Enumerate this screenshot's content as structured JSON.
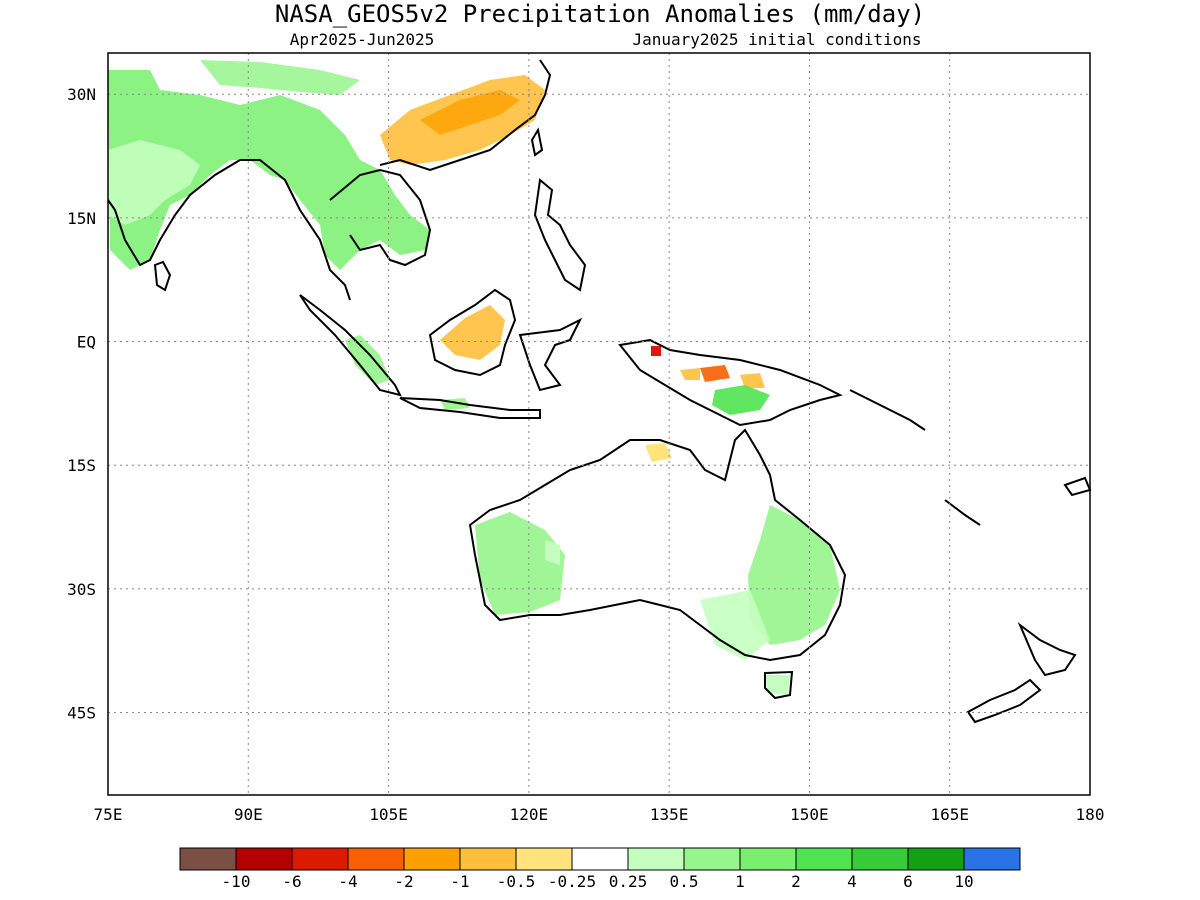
{
  "title": "NASA_GEOS5v2 Precipitation Anomalies (mm/day)",
  "subtitle_left": "Apr2025-Jun2025",
  "subtitle_right": "January2025 initial conditions",
  "map": {
    "lon_range": [
      75,
      180
    ],
    "lat_range": [
      -55,
      35
    ],
    "grid": true,
    "lon_ticks": [
      {
        "value": 75,
        "label": "75E"
      },
      {
        "value": 90,
        "label": "90E"
      },
      {
        "value": 105,
        "label": "105E"
      },
      {
        "value": 120,
        "label": "120E"
      },
      {
        "value": 135,
        "label": "135E"
      },
      {
        "value": 150,
        "label": "150E"
      },
      {
        "value": 165,
        "label": "165E"
      },
      {
        "value": 180,
        "label": "180"
      }
    ],
    "lat_ticks": [
      {
        "value": 30,
        "label": "30N"
      },
      {
        "value": 15,
        "label": "15N"
      },
      {
        "value": 0,
        "label": "EQ"
      },
      {
        "value": -15,
        "label": "15S"
      },
      {
        "value": -30,
        "label": "30S"
      },
      {
        "value": -45,
        "label": "45S"
      }
    ]
  },
  "colorbar": {
    "colors": [
      "#7b5044",
      "#b40000",
      "#dc1a00",
      "#f85f00",
      "#fea000",
      "#ffbf3c",
      "#ffe37b",
      "#ffffff",
      "#c4ffbf",
      "#96f58c",
      "#78f06e",
      "#50e350",
      "#37cc37",
      "#14a014",
      "#2873e6"
    ],
    "labels": [
      "-10",
      "-6",
      "-4",
      "-2",
      "-1",
      "-0.5",
      "-0.25",
      "0.25",
      "0.5",
      "1",
      "2",
      "4",
      "6",
      "10"
    ]
  },
  "chart_data": {
    "type": "heatmap",
    "title": "NASA_GEOS5v2 Precipitation Anomalies (mm/day)",
    "subtitle": [
      "Apr2025-Jun2025",
      "January2025 initial conditions"
    ],
    "x_axis": "longitude",
    "y_axis": "latitude",
    "xlim": [
      75,
      180
    ],
    "ylim": [
      -55,
      35
    ],
    "units": "mm/day",
    "levels": [
      -10,
      -6,
      -4,
      -2,
      -1,
      -0.5,
      -0.25,
      0.25,
      0.5,
      1,
      2,
      4,
      6,
      10
    ],
    "regions": [
      {
        "lon": [
          103,
          120
        ],
        "lat": [
          24,
          32
        ],
        "anomaly": -1
      },
      {
        "lon": [
          112,
          117
        ],
        "lat": [
          -2,
          2
        ],
        "anomaly": -1
      },
      {
        "lon": [
          139,
          143
        ],
        "lat": [
          -5,
          -3
        ],
        "anomaly": -2
      },
      {
        "lon": [
          134,
          134.5
        ],
        "lat": [
          -1.5,
          -1
        ],
        "anomaly": -4
      },
      {
        "lon": [
          133,
          135
        ],
        "lat": [
          -14,
          -13
        ],
        "anomaly": -0.5
      },
      {
        "lon": [
          93,
          103
        ],
        "lat": [
          13,
          28
        ],
        "anomaly": 1
      },
      {
        "lon": [
          75,
          85
        ],
        "lat": [
          8,
          20
        ],
        "anomaly": 0.5
      },
      {
        "lon": [
          115,
          124
        ],
        "lat": [
          -33,
          -20
        ],
        "anomaly": 0.5
      },
      {
        "lon": [
          142,
          153
        ],
        "lat": [
          -38,
          -22
        ],
        "anomaly": 0.5
      },
      {
        "lon": [
          140,
          145
        ],
        "lat": [
          -8,
          -5
        ],
        "anomaly": 1
      }
    ]
  }
}
